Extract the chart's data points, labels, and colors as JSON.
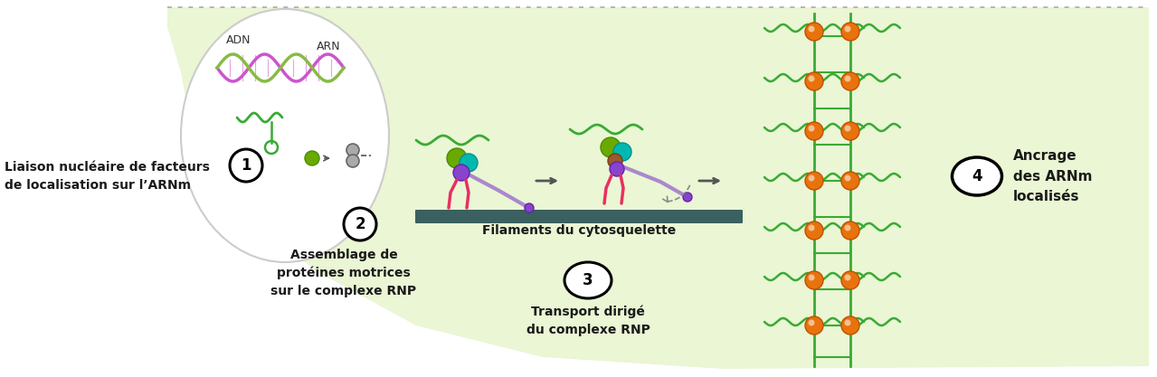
{
  "fig_width": 12.79,
  "fig_height": 4.17,
  "bg_color": "#ffffff",
  "cell_color": "#e8f5d0",
  "nucleus_color": "#f8f8f0",
  "text_color": "#1a1a1a",
  "green_color": "#3aaa35",
  "orange_color": "#e8720c",
  "teal_color": "#00b8b0",
  "purple_color": "#8844cc",
  "pink_color": "#e83060",
  "brown_color": "#7a4a2a",
  "dark_gray": "#404040",
  "filament_color": "#3a6060",
  "label1": "Liaison nucléaire de facteurs\nde localisation sur l’ARNm",
  "label2": "Assemblage de\nprotéines motrices\nsur le complexe RNP",
  "label3": "Transport dirigé\ndu complexe RNP",
  "label4": "Ancrage\ndes ARNm\nlocalisés",
  "filaments_label": "Filaments du cytosquelette",
  "adn_label": "ADN",
  "arn_label": "ARN"
}
